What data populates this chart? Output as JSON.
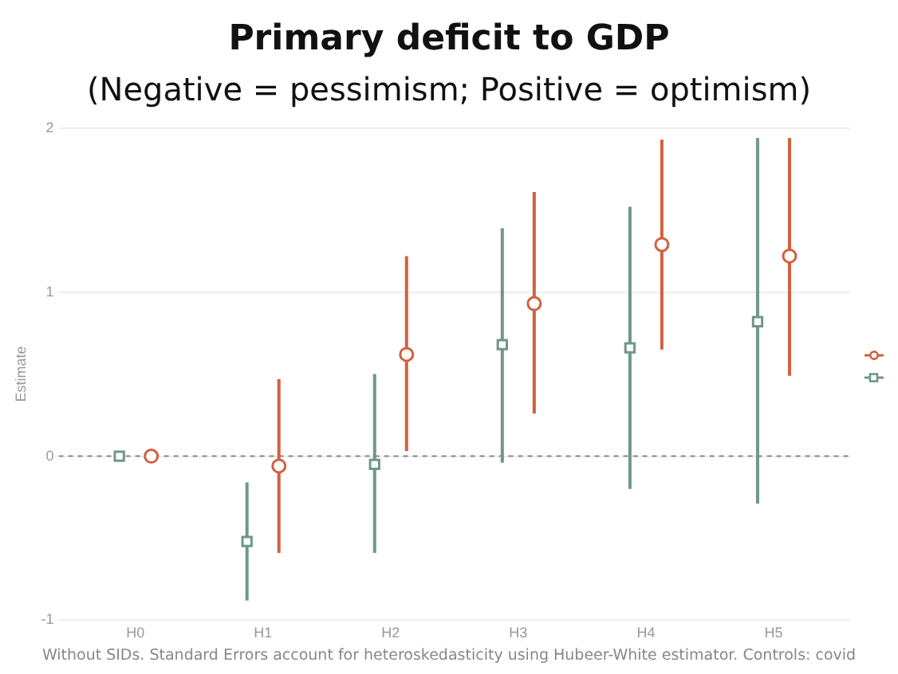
{
  "chart_data": {
    "type": "scatter",
    "title": "Primary deficit to GDP",
    "subtitle": "(Negative = pessimism; Positive = optimism)",
    "ylabel": "Estimate",
    "annotations": [
      "Without SIDs. Standard Errors account for heteroskedasticity using Hubeer-White estimator. Controls: covid"
    ],
    "categories": [
      "H0",
      "H1",
      "H2",
      "H3",
      "H4",
      "H5"
    ],
    "series": [
      {
        "color": "#d2603f",
        "marker": "circle",
        "values": [
          0,
          -0.06,
          0.62,
          0.93,
          1.29,
          1.22
        ],
        "errors": [
          null,
          [
            -0.59,
            0.47
          ],
          [
            0.03,
            1.22
          ],
          [
            0.26,
            1.61
          ],
          [
            0.65,
            1.93
          ],
          [
            0.49,
            1.94
          ]
        ]
      },
      {
        "color": "#6f9885",
        "marker": "square",
        "values": [
          0,
          -0.52,
          -0.05,
          0.68,
          0.66,
          0.82
        ],
        "errors": [
          null,
          [
            -0.88,
            -0.16
          ],
          [
            -0.59,
            0.5
          ],
          [
            -0.04,
            1.39
          ],
          [
            -0.2,
            1.52
          ],
          [
            -0.29,
            1.94
          ]
        ]
      }
    ],
    "ylim": [
      -1,
      2
    ],
    "yticks": [
      -1,
      0,
      1,
      2
    ],
    "grid": "y",
    "ref_lines": [
      {
        "axis": "y",
        "value": 0,
        "color": "#888888",
        "line_style": "dashed"
      }
    ]
  }
}
